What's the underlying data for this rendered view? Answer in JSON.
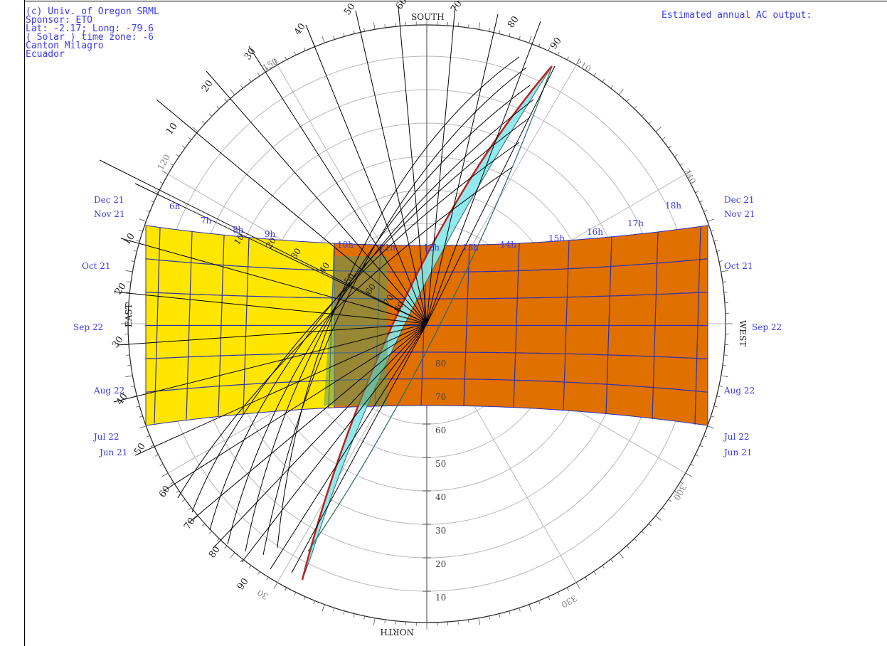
{
  "info": {
    "lines": [
      "(c) Univ. of Oregon SRML",
      "Sponsor: ETO",
      "Lat: -2.17; Long: -79.6",
      "( Solar ) time zone: -6",
      "Canton Milagro",
      "Ecuador"
    ]
  },
  "output_label": "Estimated annual AC output:",
  "compass": {
    "south": "SOUTH",
    "north": "NORTH",
    "east": "EAST",
    "west": "WEST"
  },
  "azimuth_labels": [
    {
      "text": "120"
    },
    {
      "text": "150"
    },
    {
      "text": "210"
    },
    {
      "text": "240"
    },
    {
      "text": "300"
    },
    {
      "text": "330"
    },
    {
      "text": "30"
    }
  ],
  "altitude_labels": [
    "80",
    "70",
    "60",
    "50",
    "40",
    "30",
    "20",
    "10"
  ],
  "dates_left": [
    "Dec 21",
    "Nov 21",
    "Oct 21",
    "Sep 22",
    "Aug 22",
    "Jul 22",
    "Jun 21"
  ],
  "dates_right": [
    "Dec 21",
    "Nov 21",
    "Oct 21",
    "Sep 22",
    "Aug 22",
    "Jul 22",
    "Jun 21"
  ],
  "hours": [
    "6h",
    "7h",
    "8h",
    "9h",
    "10h",
    "11h",
    "12h",
    "13h",
    "14h",
    "15h",
    "16h",
    "17h",
    "18h"
  ],
  "plane_tilt_labels": [
    "10",
    "20",
    "30",
    "40",
    "50",
    "60",
    "70",
    "80",
    "90"
  ],
  "plane_tilt_labels_inner": [
    "10",
    "20",
    "30",
    "40",
    "50",
    "60",
    "70",
    "80"
  ],
  "plane_tilt_labels_lower": [
    "10",
    "20",
    "30",
    "40",
    "50",
    "60",
    "70",
    "80",
    "90"
  ],
  "colors": {
    "morning": "#ffe600",
    "afternoon": "#e07000",
    "plane": "#86e8ec",
    "overlap": "#5c9a60",
    "grid": "#b8b8b8",
    "hour_line": "#3030b0",
    "label_blue": "#3a3af0",
    "outline_red": "#c02020"
  }
}
